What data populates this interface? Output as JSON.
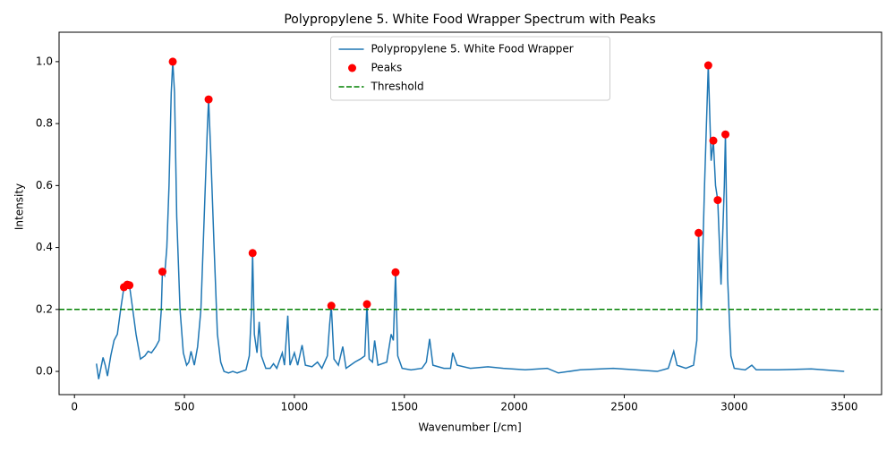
{
  "chart_data": {
    "type": "line",
    "title": "Polypropylene 5. White Food Wrapper Spectrum with Peaks",
    "x_label": "Wavenumber [/cm]",
    "y_label": "Intensity",
    "xlim": [
      -70,
      3670
    ],
    "ylim": [
      -0.075,
      1.095
    ],
    "xticks": [
      0,
      500,
      1000,
      1500,
      2000,
      2500,
      3000,
      3500
    ],
    "yticks": [
      {
        "value": 0,
        "label": "0.0"
      },
      {
        "value": 0.2,
        "label": "0.2"
      },
      {
        "value": 0.4,
        "label": "0.4"
      },
      {
        "value": 0.6,
        "label": "0.6"
      },
      {
        "value": 0.8,
        "label": "0.8"
      },
      {
        "value": 1,
        "label": "1.0"
      }
    ],
    "legend": "upper center",
    "series": [
      {
        "name": "Polypropylene 5. White Food Wrapper",
        "type": "line",
        "color": "#1f77b4",
        "x": [
          100,
          110,
          120,
          130,
          140,
          150,
          165,
          180,
          195,
          210,
          225,
          240,
          250,
          265,
          280,
          300,
          320,
          335,
          350,
          370,
          385,
          395,
          400,
          410,
          420,
          430,
          440,
          447,
          455,
          465,
          480,
          495,
          510,
          520,
          530,
          545,
          560,
          575,
          590,
          605,
          610,
          620,
          635,
          650,
          665,
          680,
          700,
          720,
          740,
          760,
          780,
          795,
          805,
          810,
          818,
          830,
          840,
          850,
          870,
          890,
          905,
          920,
          945,
          955,
          970,
          980,
          1000,
          1015,
          1035,
          1050,
          1080,
          1105,
          1125,
          1150,
          1160,
          1168,
          1180,
          1200,
          1220,
          1235,
          1255,
          1275,
          1300,
          1320,
          1330,
          1340,
          1355,
          1365,
          1380,
          1420,
          1440,
          1450,
          1460,
          1470,
          1490,
          1530,
          1580,
          1600,
          1615,
          1630,
          1680,
          1710,
          1720,
          1740,
          1800,
          1880,
          1950,
          2050,
          2150,
          2200,
          2300,
          2450,
          2550,
          2650,
          2700,
          2725,
          2740,
          2780,
          2815,
          2830,
          2838,
          2850,
          2865,
          2882,
          2895,
          2905,
          2915,
          2925,
          2940,
          2955,
          2960,
          2970,
          2985,
          3000,
          3050,
          3080,
          3100,
          3200,
          3350,
          3500
        ],
        "values": [
          0.025,
          -0.025,
          0.01,
          0.045,
          0.02,
          -0.015,
          0.05,
          0.1,
          0.12,
          0.2,
          0.272,
          0.28,
          0.278,
          0.2,
          0.12,
          0.04,
          0.05,
          0.065,
          0.06,
          0.08,
          0.1,
          0.2,
          0.322,
          0.31,
          0.4,
          0.6,
          0.9,
          1.0,
          0.9,
          0.5,
          0.2,
          0.06,
          0.02,
          0.03,
          0.065,
          0.02,
          0.08,
          0.2,
          0.5,
          0.8,
          0.878,
          0.7,
          0.4,
          0.12,
          0.03,
          0.0,
          -0.005,
          0.0,
          -0.005,
          0.0,
          0.005,
          0.05,
          0.2,
          0.382,
          0.12,
          0.06,
          0.16,
          0.05,
          0.01,
          0.01,
          0.025,
          0.01,
          0.06,
          0.02,
          0.18,
          0.02,
          0.06,
          0.02,
          0.085,
          0.02,
          0.015,
          0.03,
          0.01,
          0.05,
          0.15,
          0.212,
          0.04,
          0.02,
          0.08,
          0.01,
          0.02,
          0.03,
          0.04,
          0.05,
          0.217,
          0.04,
          0.03,
          0.1,
          0.02,
          0.03,
          0.12,
          0.1,
          0.32,
          0.05,
          0.01,
          0.005,
          0.01,
          0.03,
          0.105,
          0.02,
          0.01,
          0.01,
          0.06,
          0.02,
          0.01,
          0.015,
          0.01,
          0.005,
          0.01,
          -0.005,
          0.005,
          0.01,
          0.005,
          0.0,
          0.01,
          0.065,
          0.02,
          0.01,
          0.02,
          0.1,
          0.447,
          0.2,
          0.6,
          0.988,
          0.68,
          0.745,
          0.6,
          0.553,
          0.28,
          0.6,
          0.765,
          0.3,
          0.05,
          0.01,
          0.005,
          0.02,
          0.005,
          0.005,
          0.008,
          0.0
        ]
      },
      {
        "name": "Peaks",
        "type": "scatter",
        "color": "#ff0000",
        "x": [
          225,
          240,
          250,
          400,
          447,
          610,
          810,
          1168,
          1330,
          1460,
          2838,
          2882,
          2905,
          2925,
          2960
        ],
        "values": [
          0.272,
          0.28,
          0.278,
          0.322,
          1.0,
          0.878,
          0.382,
          0.212,
          0.217,
          0.32,
          0.447,
          0.988,
          0.745,
          0.553,
          0.765
        ]
      },
      {
        "name": "Threshold",
        "type": "hline",
        "color": "#008000",
        "value": 0.2
      }
    ]
  }
}
